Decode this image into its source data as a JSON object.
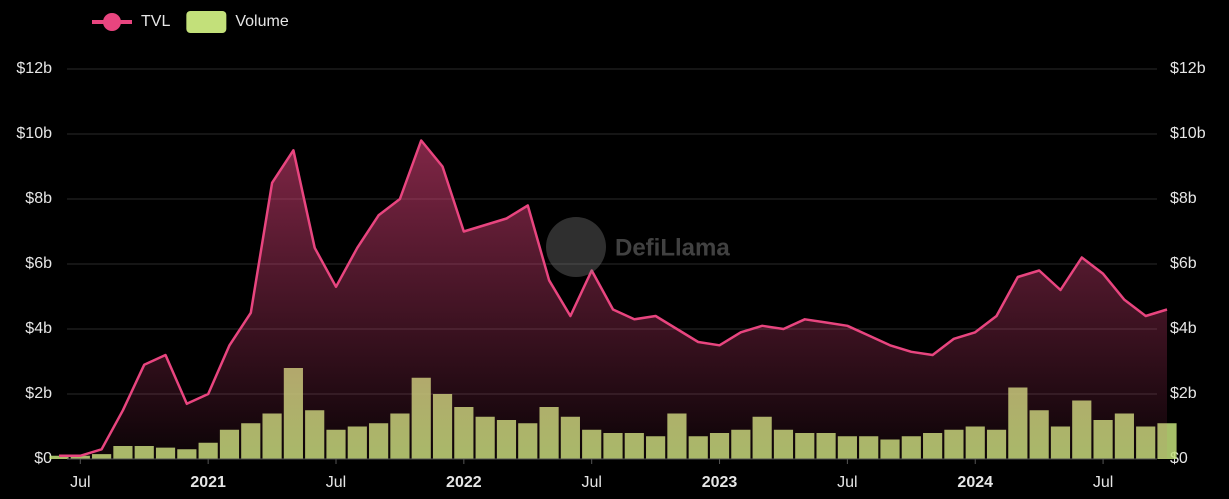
{
  "chart_data": {
    "type": "line-bar",
    "watermark": "DefiLlama",
    "x": [
      "2020-06",
      "2020-07",
      "2020-08",
      "2020-09",
      "2020-10",
      "2020-11",
      "2020-12",
      "2021-01",
      "2021-02",
      "2021-03",
      "2021-04",
      "2021-05",
      "2021-06",
      "2021-07",
      "2021-08",
      "2021-09",
      "2021-10",
      "2021-11",
      "2021-12",
      "2022-01",
      "2022-02",
      "2022-03",
      "2022-04",
      "2022-05",
      "2022-06",
      "2022-07",
      "2022-08",
      "2022-09",
      "2022-10",
      "2022-11",
      "2022-12",
      "2023-01",
      "2023-02",
      "2023-03",
      "2023-04",
      "2023-05",
      "2023-06",
      "2023-07",
      "2023-08",
      "2023-09",
      "2023-10",
      "2023-11",
      "2023-12",
      "2024-01",
      "2024-02",
      "2024-03",
      "2024-04",
      "2024-05",
      "2024-06",
      "2024-07",
      "2024-08",
      "2024-09",
      "2024-10"
    ],
    "series": [
      {
        "name": "TVL",
        "color": "#e8457f",
        "type": "line",
        "axis": "y",
        "values": [
          0.1,
          0.1,
          0.3,
          1.5,
          2.9,
          3.2,
          1.7,
          2.0,
          3.5,
          4.5,
          8.5,
          9.5,
          6.5,
          5.3,
          6.5,
          7.5,
          8.0,
          9.8,
          9.0,
          7.0,
          7.2,
          7.4,
          7.8,
          5.5,
          4.4,
          5.8,
          4.6,
          4.3,
          4.4,
          4.0,
          3.6,
          3.5,
          3.9,
          4.1,
          4.0,
          4.3,
          4.2,
          4.1,
          3.8,
          3.5,
          3.3,
          3.2,
          3.7,
          3.9,
          4.4,
          5.6,
          5.8,
          5.2,
          6.2,
          5.7,
          4.9,
          4.4,
          4.6
        ]
      },
      {
        "name": "Volume",
        "color": "#c3e07a",
        "type": "bar",
        "axis": "y2",
        "values": [
          0.1,
          0.1,
          0.15,
          0.4,
          0.4,
          0.35,
          0.3,
          0.5,
          0.9,
          1.1,
          1.4,
          2.8,
          1.5,
          0.9,
          1.0,
          1.1,
          1.4,
          2.5,
          2.0,
          1.6,
          1.3,
          1.2,
          1.1,
          1.6,
          1.3,
          0.9,
          0.8,
          0.8,
          0.7,
          1.4,
          0.7,
          0.8,
          0.9,
          1.3,
          0.9,
          0.8,
          0.8,
          0.7,
          0.7,
          0.6,
          0.7,
          0.8,
          0.9,
          1.0,
          0.9,
          2.2,
          1.5,
          1.0,
          1.8,
          1.2,
          1.4,
          1.0,
          1.1
        ]
      }
    ],
    "xlim": [
      "2020-06",
      "2024-10"
    ],
    "xticks": [
      {
        "value": "2020-07",
        "label": "Jul"
      },
      {
        "value": "2021-01",
        "label": "2021"
      },
      {
        "value": "2021-07",
        "label": "Jul"
      },
      {
        "value": "2022-01",
        "label": "2022"
      },
      {
        "value": "2022-07",
        "label": "Jul"
      },
      {
        "value": "2023-01",
        "label": "2023"
      },
      {
        "value": "2023-07",
        "label": "Jul"
      },
      {
        "value": "2024-01",
        "label": "2024"
      },
      {
        "value": "2024-07",
        "label": "Jul"
      }
    ],
    "ylim": [
      0,
      12
    ],
    "yticks": [
      {
        "value": 0,
        "label": "$0"
      },
      {
        "value": 2,
        "label": "$2b"
      },
      {
        "value": 4,
        "label": "$4b"
      },
      {
        "value": 6,
        "label": "$6b"
      },
      {
        "value": 8,
        "label": "$8b"
      },
      {
        "value": 10,
        "label": "$10b"
      },
      {
        "value": 12,
        "label": "$12b"
      }
    ],
    "y2lim": [
      0,
      12
    ],
    "y2ticks": [
      {
        "value": 0,
        "label": "$0"
      },
      {
        "value": 2,
        "label": "$2b"
      },
      {
        "value": 4,
        "label": "$4b"
      },
      {
        "value": 6,
        "label": "$6b"
      },
      {
        "value": 8,
        "label": "$8b"
      },
      {
        "value": 10,
        "label": "$10b"
      },
      {
        "value": 12,
        "label": "$12b"
      }
    ],
    "grid": true,
    "legend": "top-left"
  }
}
